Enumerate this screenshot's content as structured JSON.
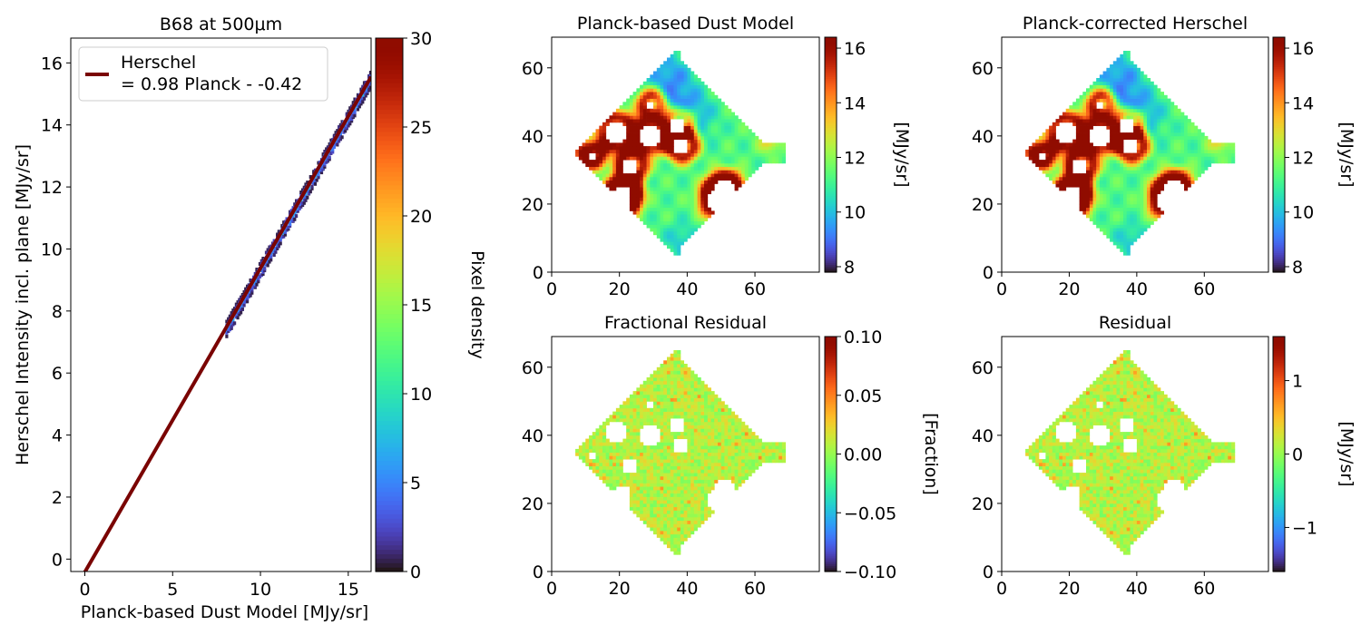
{
  "chart_data": [
    {
      "type": "2d-histogram",
      "title": "B68 at 500μm",
      "xlabel": "Planck-based Dust Model [MJy/sr]",
      "ylabel": "Herschel Intensity incl. plane [MJy/sr]",
      "xlim": [
        -0.8,
        16.3
      ],
      "ylim": [
        -0.4,
        16.8
      ],
      "xticks": [
        0,
        5,
        10,
        15
      ],
      "yticks": [
        0,
        2,
        4,
        6,
        8,
        10,
        12,
        14,
        16
      ],
      "fit": {
        "slope": 0.98,
        "intercept": -0.42,
        "x_range": [
          0,
          16.3
        ],
        "color": "#7a0403"
      },
      "legend": {
        "line1": "Herschel",
        "line2": "= 0.98 Planck - -0.42",
        "placement": "upper-left"
      },
      "density_band": {
        "x_range": [
          8.0,
          16.3
        ]
      },
      "colorbar": {
        "label": "Pixel density",
        "min": 0,
        "max": 30,
        "ticks": [
          0,
          5,
          10,
          15,
          20,
          25,
          30
        ],
        "cmap": "turbo"
      }
    },
    {
      "type": "heatmap",
      "title": "Planck-based Dust Model",
      "xlim": [
        0,
        79
      ],
      "ylim": [
        0,
        69
      ],
      "xticks": [
        0,
        20,
        40,
        60
      ],
      "yticks": [
        0,
        20,
        40,
        60
      ],
      "map": "dust",
      "colorbar": {
        "label": "[MJy/sr]",
        "min": 7.8,
        "max": 16.4,
        "ticks": [
          8,
          10,
          12,
          14,
          16
        ],
        "cmap": "turbo"
      }
    },
    {
      "type": "heatmap",
      "title": "Planck-corrected Herschel",
      "xlim": [
        0,
        79
      ],
      "ylim": [
        0,
        69
      ],
      "xticks": [
        0,
        20,
        40,
        60
      ],
      "yticks": [
        0,
        20,
        40,
        60
      ],
      "map": "dust",
      "colorbar": {
        "label": "[MJy/sr]",
        "min": 7.8,
        "max": 16.4,
        "ticks": [
          8,
          10,
          12,
          14,
          16
        ],
        "cmap": "turbo"
      }
    },
    {
      "type": "heatmap",
      "title": "Fractional Residual",
      "xlim": [
        0,
        79
      ],
      "ylim": [
        0,
        69
      ],
      "xticks": [
        0,
        20,
        40,
        60
      ],
      "yticks": [
        0,
        20,
        40,
        60
      ],
      "map": "residual",
      "colorbar": {
        "label": "[Fraction]",
        "min": -0.1,
        "max": 0.1,
        "ticks": [
          -0.1,
          -0.05,
          0.0,
          0.05,
          0.1
        ],
        "tick_labels": [
          "−0.10",
          "−0.05",
          "0.00",
          "0.05",
          "0.10"
        ],
        "cmap": "turbo"
      }
    },
    {
      "type": "heatmap",
      "title": "Residual",
      "xlim": [
        0,
        79
      ],
      "ylim": [
        0,
        69
      ],
      "xticks": [
        0,
        20,
        40,
        60
      ],
      "yticks": [
        0,
        20,
        40,
        60
      ],
      "map": "residual",
      "colorbar": {
        "label": "[MJy/sr]",
        "min": -1.6,
        "max": 1.6,
        "ticks": [
          -1,
          0,
          1
        ],
        "tick_labels": [
          "−1",
          "0",
          "1"
        ],
        "cmap": "turbo"
      }
    }
  ]
}
